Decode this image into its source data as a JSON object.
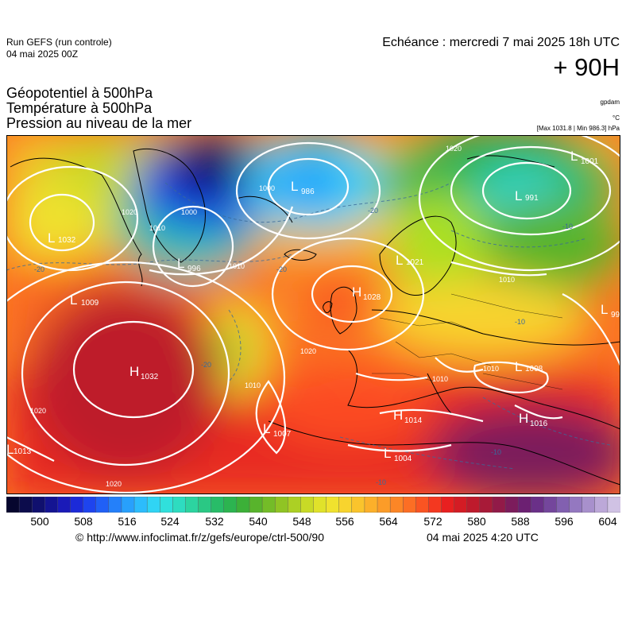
{
  "header": {
    "run_line1": "Run GEFS (run controle)",
    "run_line2": "04 mai 2025 00Z",
    "echeance": "Echéance : mercredi 7 mai 2025 18h UTC",
    "lead_time": "+ 90H",
    "field_geopotential": "Géopotentiel à 500hPa",
    "field_temperature": "Température à 500hPa",
    "field_pressure": "Pression au niveau de la mer",
    "unit_gpdam": "gpdam",
    "unit_celsius": "°C",
    "max_min": "[Max 1031.8 | Min 986.3] hPa"
  },
  "map": {
    "pressure_centers": [
      {
        "type": "H",
        "value": "1032"
      },
      {
        "type": "H",
        "value": "1028"
      },
      {
        "type": "H",
        "value": "1014"
      },
      {
        "type": "H",
        "value": "1016"
      },
      {
        "type": "L",
        "value": "986"
      },
      {
        "type": "L",
        "value": "991"
      },
      {
        "type": "L",
        "value": "1001"
      },
      {
        "type": "L",
        "value": "996"
      },
      {
        "type": "L",
        "value": "1007"
      },
      {
        "type": "L",
        "value": "1004"
      },
      {
        "type": "L",
        "value": "1008"
      },
      {
        "type": "L",
        "value": "1013"
      },
      {
        "type": "L",
        "value": "1009"
      },
      {
        "type": "L",
        "value": "99"
      },
      {
        "type": "L",
        "value": "1032"
      },
      {
        "type": "L",
        "value": "1021"
      }
    ],
    "isobar_labels": [
      "1020",
      "1020",
      "1020",
      "1020",
      "1020",
      "1010",
      "1010",
      "1010",
      "1010",
      "1010",
      "1010",
      "1000",
      "1000"
    ],
    "isotherm_labels": [
      "-20",
      "-20",
      "-20",
      "-20",
      "-10",
      "-10",
      "-10",
      "-10"
    ]
  },
  "colorbar": {
    "ticks": [
      "500",
      "508",
      "516",
      "524",
      "532",
      "540",
      "548",
      "556",
      "564",
      "572",
      "580",
      "588",
      "596",
      "604"
    ],
    "colors": [
      "#06062e",
      "#0c0c4c",
      "#10106e",
      "#141492",
      "#1a1ab8",
      "#1c2ad8",
      "#1e44ee",
      "#2060f6",
      "#2480fa",
      "#28a0fc",
      "#2cbcfc",
      "#30d4f4",
      "#30e0dc",
      "#2edcc0",
      "#2cd4a0",
      "#2ac884",
      "#28bc68",
      "#2cb450",
      "#3cb038",
      "#58b42c",
      "#74bc28",
      "#90c424",
      "#acd024",
      "#c8da26",
      "#e0e22a",
      "#f0e22e",
      "#f8d42e",
      "#fac42c",
      "#fcb02a",
      "#fc9c28",
      "#fc8626",
      "#fc6e24",
      "#fa5422",
      "#f43820",
      "#e82020",
      "#d41c24",
      "#be1a2c",
      "#a81a38",
      "#921a48",
      "#7c1c5c",
      "#6c2072",
      "#6a3088",
      "#74469c",
      "#8260b0",
      "#9478c0",
      "#a890cc",
      "#bca8d8",
      "#d0c2e4"
    ]
  },
  "footer": {
    "url": "© http://www.infoclimat.fr/z/gefs/europe/ctrl-500/90",
    "timestamp": "04 mai 2025  4:20 UTC"
  }
}
